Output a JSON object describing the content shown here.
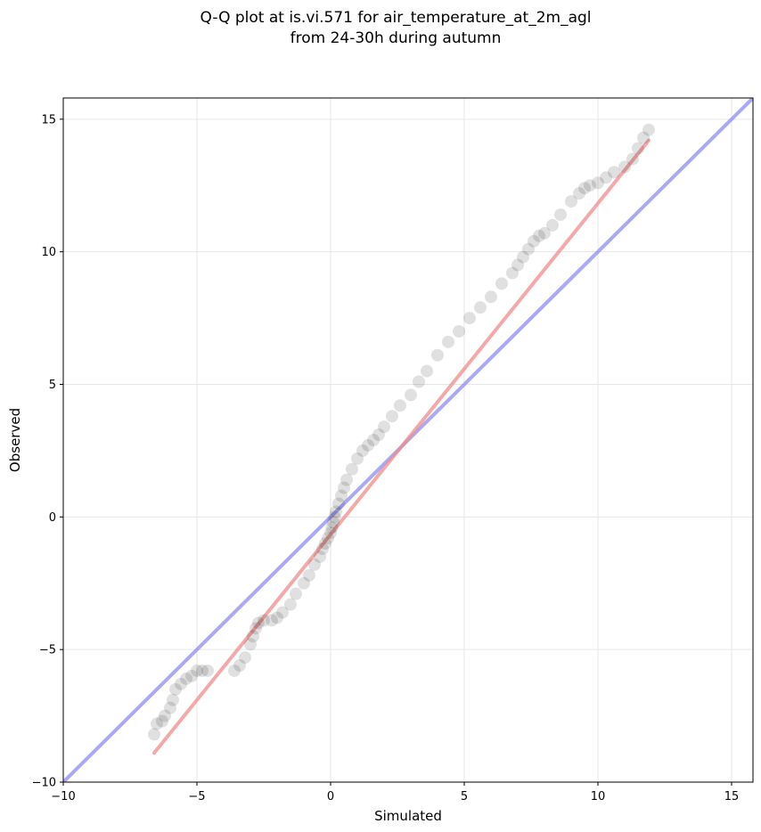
{
  "chart_data": {
    "type": "scatter",
    "title_lines": [
      "Q-Q plot at is.vi.571 for air_temperature_at_2m_agl",
      "from 24-30h during autumn"
    ],
    "xlabel": "Simulated",
    "ylabel": "Observed",
    "xlim": [
      -10,
      15.8
    ],
    "ylim": [
      -10,
      15.8
    ],
    "xticks": [
      -10,
      -5,
      0,
      5,
      10,
      15
    ],
    "yticks": [
      -10,
      -5,
      0,
      5,
      10,
      15
    ],
    "xtick_labels": [
      "−10",
      "−5",
      "0",
      "5",
      "10",
      "15"
    ],
    "ytick_labels": [
      "−10",
      "−5",
      "0",
      "5",
      "10",
      "15"
    ],
    "grid": true,
    "reference_lines": [
      {
        "kind": "identity",
        "color": "#8c8cf0",
        "x": [
          -10,
          15.8
        ],
        "y": [
          -10,
          15.8
        ]
      },
      {
        "kind": "fit",
        "color": "#f08c8c",
        "x": [
          -6.6,
          11.9
        ],
        "y": [
          -8.9,
          14.2
        ]
      }
    ],
    "quantile_points": {
      "color": "#000000",
      "x": [
        -6.6,
        -6.5,
        -6.3,
        -6.2,
        -6.0,
        -5.9,
        -5.8,
        -5.6,
        -5.4,
        -5.2,
        -5.0,
        -4.8,
        -4.6,
        -3.6,
        -3.4,
        -3.2,
        -3.0,
        -2.9,
        -2.8,
        -2.7,
        -2.5,
        -2.2,
        -2.0,
        -1.8,
        -1.5,
        -1.3,
        -1.0,
        -0.8,
        -0.6,
        -0.4,
        -0.3,
        -0.2,
        -0.1,
        0.0,
        0.05,
        0.1,
        0.15,
        0.2,
        0.3,
        0.4,
        0.5,
        0.6,
        0.8,
        1.0,
        1.2,
        1.4,
        1.6,
        1.8,
        2.0,
        2.3,
        2.6,
        3.0,
        3.3,
        3.6,
        4.0,
        4.4,
        4.8,
        5.2,
        5.6,
        6.0,
        6.4,
        6.8,
        7.0,
        7.2,
        7.4,
        7.6,
        7.8,
        8.0,
        8.3,
        8.6,
        9.0,
        9.3,
        9.5,
        9.7,
        10.0,
        10.3,
        10.6,
        11.0,
        11.3,
        11.5,
        11.7,
        11.9
      ],
      "y": [
        -8.2,
        -7.8,
        -7.7,
        -7.5,
        -7.2,
        -6.9,
        -6.5,
        -6.3,
        -6.1,
        -6.0,
        -5.8,
        -5.8,
        -5.8,
        -5.8,
        -5.6,
        -5.3,
        -4.8,
        -4.5,
        -4.2,
        -4.0,
        -3.9,
        -3.9,
        -3.8,
        -3.6,
        -3.3,
        -2.9,
        -2.5,
        -2.2,
        -1.8,
        -1.5,
        -1.2,
        -1.0,
        -0.8,
        -0.6,
        -0.4,
        -0.2,
        0.0,
        0.2,
        0.5,
        0.8,
        1.1,
        1.4,
        1.8,
        2.2,
        2.5,
        2.7,
        2.9,
        3.1,
        3.4,
        3.8,
        4.2,
        4.6,
        5.1,
        5.5,
        6.1,
        6.6,
        7.0,
        7.5,
        7.9,
        8.3,
        8.8,
        9.2,
        9.5,
        9.8,
        10.1,
        10.4,
        10.6,
        10.7,
        11.0,
        11.4,
        11.9,
        12.2,
        12.4,
        12.5,
        12.6,
        12.8,
        13.0,
        13.2,
        13.5,
        13.9,
        14.3,
        14.6
      ]
    }
  }
}
